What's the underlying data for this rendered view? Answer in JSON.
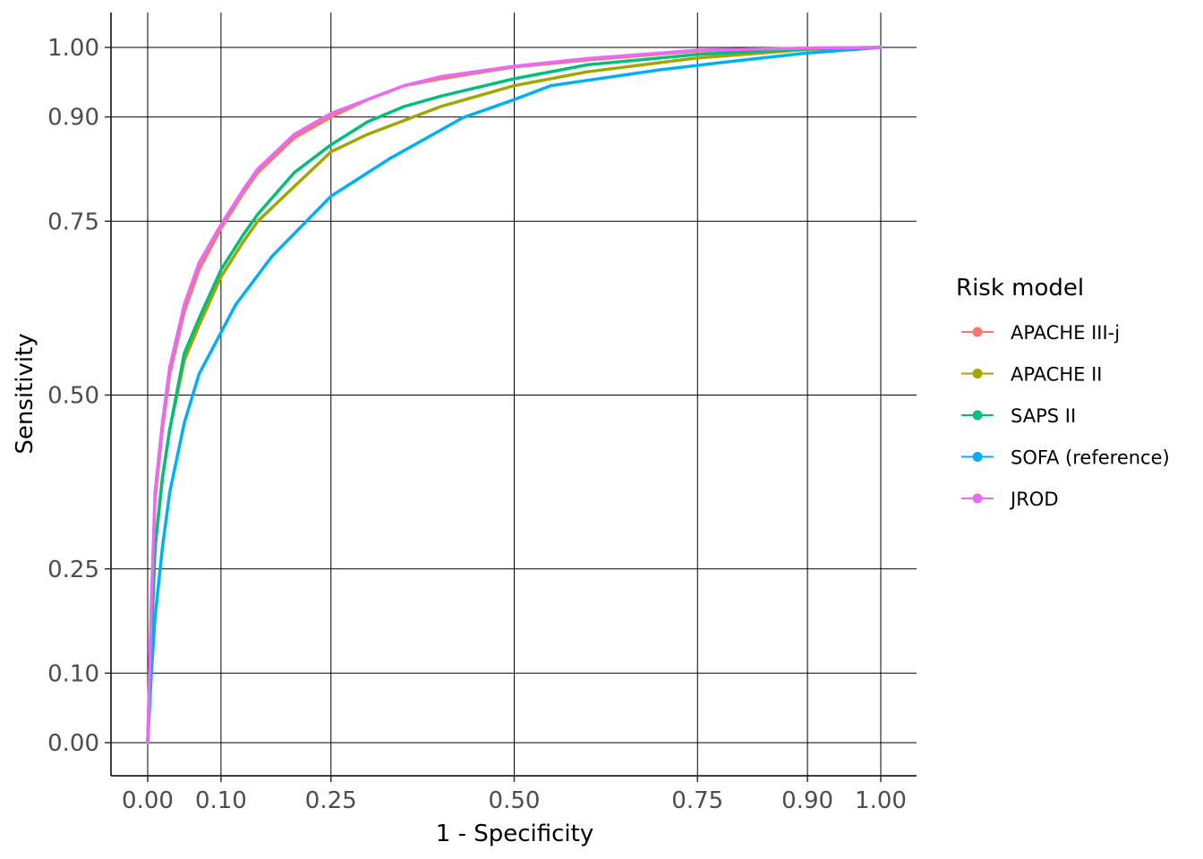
{
  "chart_data": {
    "type": "line",
    "xlabel": "1 - Specificity",
    "ylabel": "Sensitivity",
    "xlim": [
      0,
      1
    ],
    "ylim": [
      0,
      1
    ],
    "x_ticks": [
      0.0,
      0.1,
      0.25,
      0.5,
      0.75,
      0.9,
      1.0
    ],
    "x_tick_labels": [
      "0.00",
      "0.10",
      "0.25",
      "0.50",
      "0.75",
      "0.90",
      "1.00"
    ],
    "y_ticks": [
      0.0,
      0.1,
      0.25,
      0.5,
      0.75,
      0.9,
      1.0
    ],
    "y_tick_labels": [
      "0.00",
      "0.10",
      "0.25",
      "0.50",
      "0.75",
      "0.90",
      "1.00"
    ],
    "grid": true,
    "legend": {
      "title": "Risk model",
      "position": "right"
    },
    "series": [
      {
        "name": "APACHE III-j",
        "color": "#F8766D",
        "x": [
          0,
          0.005,
          0.01,
          0.02,
          0.03,
          0.05,
          0.07,
          0.1,
          0.13,
          0.15,
          0.2,
          0.25,
          0.3,
          0.35,
          0.4,
          0.5,
          0.6,
          0.75,
          0.9,
          1.0
        ],
        "y": [
          0,
          0.2,
          0.35,
          0.45,
          0.53,
          0.62,
          0.68,
          0.74,
          0.79,
          0.82,
          0.87,
          0.9,
          0.925,
          0.945,
          0.955,
          0.972,
          0.982,
          0.995,
          0.999,
          1.0
        ]
      },
      {
        "name": "APACHE II",
        "color": "#A3A500",
        "x": [
          0,
          0.005,
          0.01,
          0.02,
          0.03,
          0.05,
          0.07,
          0.1,
          0.13,
          0.15,
          0.2,
          0.25,
          0.3,
          0.35,
          0.4,
          0.5,
          0.6,
          0.75,
          0.9,
          1.0
        ],
        "y": [
          0,
          0.15,
          0.28,
          0.38,
          0.45,
          0.55,
          0.6,
          0.67,
          0.72,
          0.75,
          0.8,
          0.85,
          0.875,
          0.895,
          0.915,
          0.945,
          0.965,
          0.985,
          0.997,
          1.0
        ]
      },
      {
        "name": "SAPS II",
        "color": "#00BF7D",
        "x": [
          0,
          0.005,
          0.01,
          0.02,
          0.03,
          0.05,
          0.07,
          0.1,
          0.13,
          0.15,
          0.2,
          0.25,
          0.3,
          0.35,
          0.4,
          0.5,
          0.6,
          0.75,
          0.9,
          1.0
        ],
        "y": [
          0,
          0.15,
          0.28,
          0.38,
          0.45,
          0.56,
          0.61,
          0.68,
          0.73,
          0.76,
          0.82,
          0.86,
          0.893,
          0.915,
          0.93,
          0.955,
          0.975,
          0.99,
          0.998,
          1.0
        ]
      },
      {
        "name": "SOFA (reference)",
        "color": "#00B0F6",
        "x": [
          0,
          0.005,
          0.01,
          0.02,
          0.03,
          0.05,
          0.07,
          0.1,
          0.12,
          0.17,
          0.25,
          0.33,
          0.43,
          0.5,
          0.55,
          0.7,
          0.78,
          0.9,
          1.0
        ],
        "y": [
          0,
          0.1,
          0.18,
          0.28,
          0.36,
          0.46,
          0.53,
          0.59,
          0.63,
          0.7,
          0.786,
          0.84,
          0.899,
          0.925,
          0.945,
          0.968,
          0.978,
          0.992,
          1.0
        ]
      },
      {
        "name": "JROD",
        "color": "#E76BF3",
        "x": [
          0,
          0.005,
          0.01,
          0.02,
          0.03,
          0.05,
          0.07,
          0.1,
          0.13,
          0.15,
          0.2,
          0.25,
          0.3,
          0.35,
          0.4,
          0.5,
          0.6,
          0.75,
          0.9,
          1.0
        ],
        "y": [
          0,
          0.2,
          0.36,
          0.46,
          0.54,
          0.63,
          0.69,
          0.745,
          0.795,
          0.825,
          0.875,
          0.905,
          0.925,
          0.945,
          0.958,
          0.973,
          0.984,
          0.996,
          0.999,
          1.0
        ]
      }
    ]
  }
}
